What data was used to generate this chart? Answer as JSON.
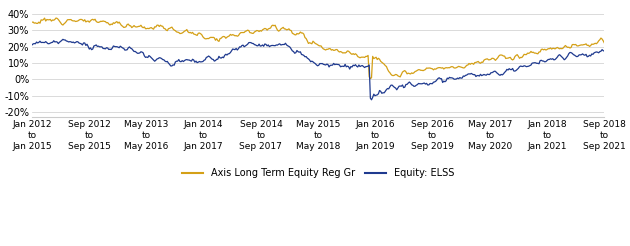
{
  "yticks": [
    -20,
    -10,
    0,
    10,
    20,
    30,
    40
  ],
  "ytick_labels": [
    "-20%",
    "-10%",
    "0%",
    "10%",
    "20%",
    "30%",
    "40%"
  ],
  "ylim": [
    -23,
    46
  ],
  "xtick_labels": [
    "Jan 2012\nto\nJan 2015",
    "Sep 2012\nto\nSep 2015",
    "May 2013\nto\nMay 2016",
    "Jan 2014\nto\nJan 2017",
    "Sep 2014\nto\nSep 2017",
    "May 2015\nto\nMay 2018",
    "Jan 2016\nto\nJan 2019",
    "Sep 2016\nto\nSep 2019",
    "May 2017\nto\nMay 2020",
    "Jan 2018\nto\nJan 2021",
    "Sep 2018\nto\nSep 2021"
  ],
  "legend_labels": [
    "Axis Long Term Equity Reg Gr",
    "Equity: ELSS"
  ],
  "gold_color": "#D4A017",
  "blue_color": "#1F3A8F",
  "background_color": "#FFFFFF",
  "grid_color": "#CCCCCC",
  "font_size": 7,
  "legend_font_size": 7,
  "line_width": 0.9,
  "n_points": 500,
  "gold_anchors_x": [
    0,
    30,
    60,
    90,
    120,
    160,
    190,
    220,
    250,
    280,
    295,
    300,
    315,
    340,
    370,
    400,
    430,
    460,
    499
  ],
  "gold_anchors_y": [
    35,
    37,
    35,
    33,
    31,
    25,
    30,
    32,
    21,
    15,
    14,
    13,
    2,
    5,
    8,
    12,
    15,
    20,
    22
  ],
  "blue_anchors_x": [
    0,
    30,
    60,
    90,
    120,
    160,
    190,
    220,
    250,
    270,
    295,
    296,
    305,
    315,
    340,
    370,
    400,
    430,
    460,
    499
  ],
  "blue_anchors_y": [
    22,
    23,
    20,
    18,
    10,
    12,
    22,
    20,
    10,
    8,
    7,
    -12,
    -8,
    -5,
    -3,
    1,
    3,
    8,
    14,
    17
  ],
  "noise_scale_gold": 1.8,
  "noise_scale_blue": 1.8,
  "noise_smooth_window": 4,
  "random_seed": 12
}
